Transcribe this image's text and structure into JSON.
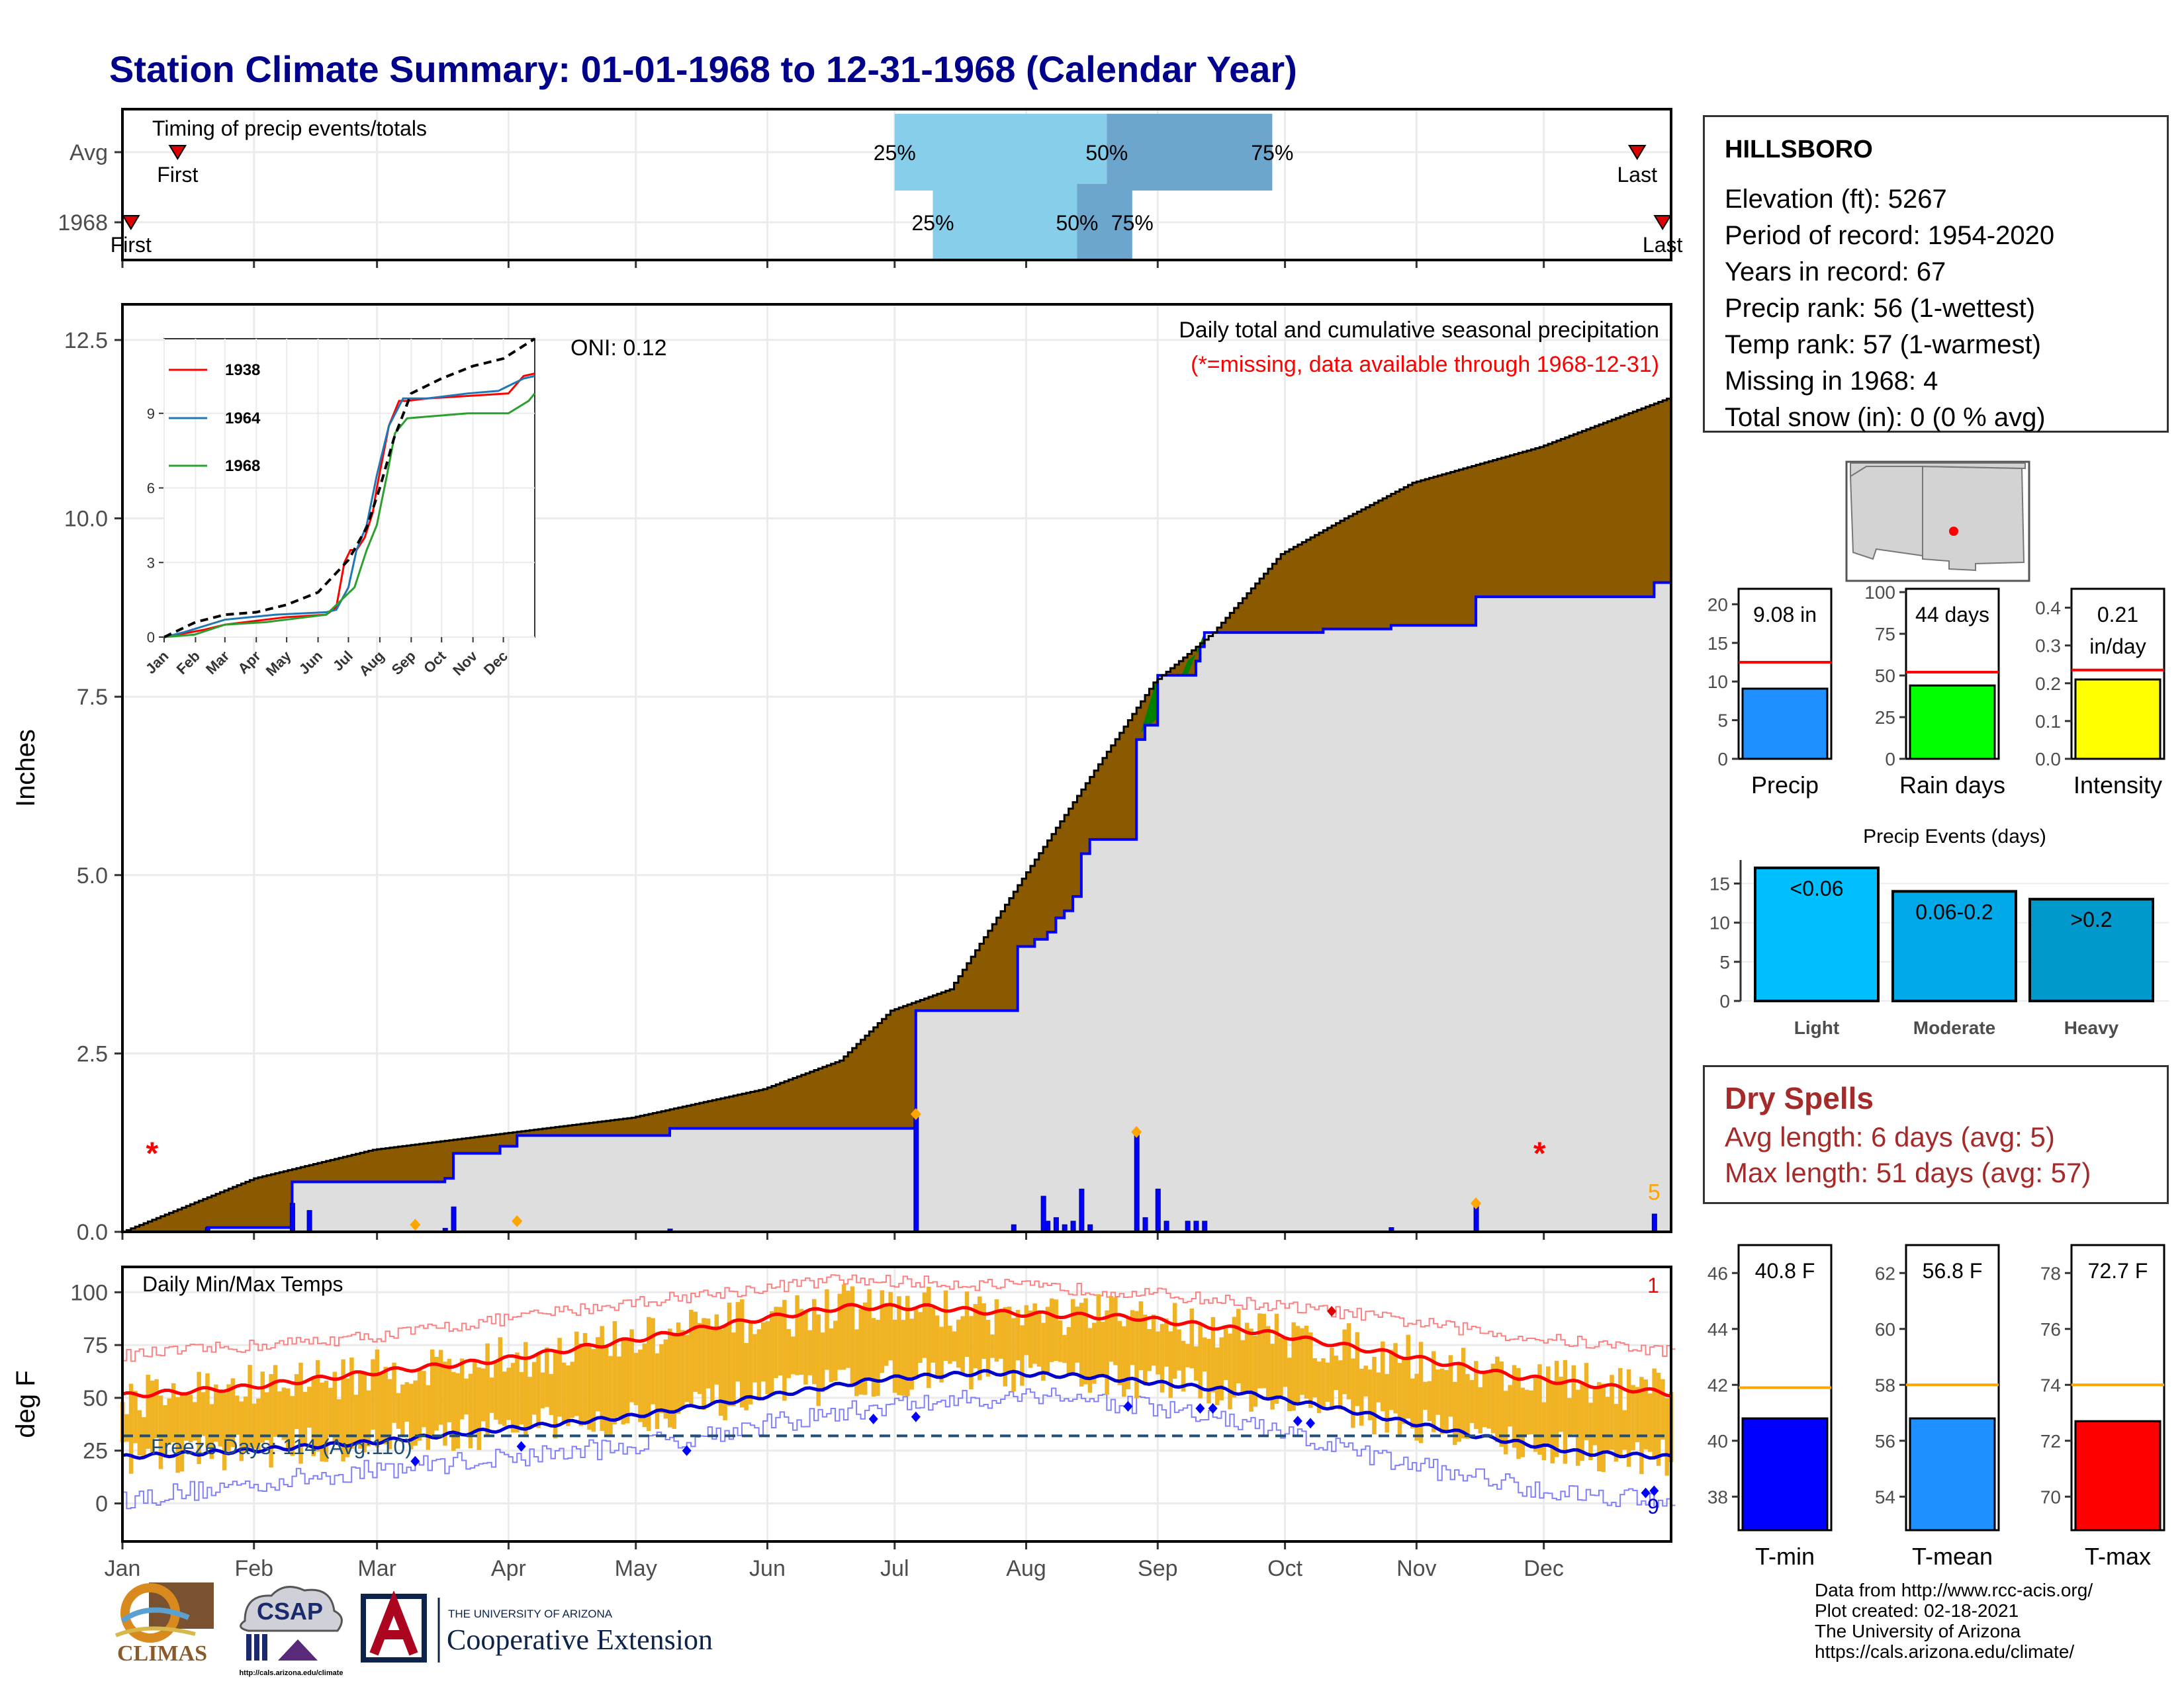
{
  "title": "Station Climate Summary: 01-01-1968 to 12-31-1968 (Calendar Year)",
  "station": {
    "name": "HILLSBORO",
    "lines": [
      "Elevation (ft): 5267",
      "Period of record: 1954-2020",
      "Years in record: 67",
      "Precip rank: 56 (1-wettest)",
      "Temp rank: 57 (1-warmest)",
      "Missing in 1968: 4",
      "Total snow (in): 0 (0 % avg)"
    ]
  },
  "dry_spells": {
    "heading": "Dry Spells",
    "avg_length": "Avg length: 6 days (avg: 5)",
    "max_length": "Max length: 51 days (avg: 57)"
  },
  "credits": [
    "Data from http://www.rcc-acis.org/",
    "Plot created: 02-18-2021",
    "The University of Arizona",
    "https://cals.arizona.edu/climate/"
  ],
  "logos": {
    "climas": "CLIMAS",
    "csap": "CSAP",
    "csap_url": "http://cals.arizona.edu/climate",
    "ua_small": "THE UNIVERSITY OF ARIZONA",
    "ua_big": "Cooperative Extension"
  },
  "colors": {
    "title": "#00008b",
    "cum_current": "#0000ff",
    "cum_fill_deficit": "#8b5a00",
    "cum_fill_surplus": "#008000",
    "cum_area": "#dedede",
    "temp_bars": "#f0b323",
    "tmax_avg": "#ff0000",
    "tmin_avg": "#0000cd",
    "freeze_line": "#1f4e79",
    "pct_light": "#87ceeb",
    "pct_dark": "#6ca6cd"
  },
  "chart_data": [
    {
      "id": "timing",
      "type": "bar",
      "title": "Timing of precip events/totals",
      "rows": [
        {
          "label": "Avg",
          "first_date": "1968-01-14",
          "p25": "1968-07-01",
          "p50": "1968-08-20",
          "p75": "1968-09-28",
          "last_date": "1968-12-23",
          "first_label": "First",
          "last_label": "Last",
          "p25_label": "25%",
          "p50_label": "50%",
          "p75_label": "75%"
        },
        {
          "label": "1968",
          "first_date": "1968-01-03",
          "p25": "1968-07-10",
          "p50": "1968-08-13",
          "p75": "1968-08-26",
          "last_date": "1968-12-29",
          "first_label": "First",
          "last_label": "Last",
          "p25_label": "25%",
          "p50_label": "50%",
          "p75_label": "75%"
        }
      ]
    },
    {
      "id": "precip",
      "type": "area",
      "title": "Daily total and cumulative seasonal precipitation",
      "subtitle": "(*=missing, data available through 1968-12-31)",
      "ylabel": "Inches",
      "ylim": [
        0,
        13
      ],
      "yticks": [
        "0.0",
        "2.5",
        "5.0",
        "7.5",
        "10.0",
        "12.5"
      ],
      "months": [
        "Jan",
        "Feb",
        "Mar",
        "Apr",
        "May",
        "Jun",
        "Jul",
        "Aug",
        "Sep",
        "Oct",
        "Nov",
        "Dec"
      ],
      "oni": "ONI: 0.12",
      "avg_cumulative_monthly": [
        [
          1,
          0
        ],
        [
          32,
          0.75
        ],
        [
          60,
          1.15
        ],
        [
          91,
          1.38
        ],
        [
          121,
          1.6
        ],
        [
          152,
          2.0
        ],
        [
          170,
          2.4
        ],
        [
          182,
          3.1
        ],
        [
          196,
          3.4
        ],
        [
          213,
          4.95
        ],
        [
          227,
          6.2
        ],
        [
          244,
          7.7
        ],
        [
          258,
          8.4
        ],
        [
          274,
          9.5
        ],
        [
          289,
          10.0
        ],
        [
          305,
          10.5
        ],
        [
          335,
          11.0
        ],
        [
          366,
          11.7
        ]
      ],
      "cumulative_1968_steps": [
        [
          1,
          0
        ],
        [
          21,
          0.06
        ],
        [
          41,
          0.3
        ],
        [
          41,
          0.7
        ],
        [
          59,
          0.7
        ],
        [
          77,
          0.75
        ],
        [
          79,
          1.1
        ],
        [
          90,
          1.2
        ],
        [
          94,
          1.35
        ],
        [
          130,
          1.45
        ],
        [
          188,
          1.45
        ],
        [
          188,
          3.1
        ],
        [
          211,
          3.1
        ],
        [
          212,
          4.0
        ],
        [
          216,
          4.1
        ],
        [
          219,
          4.1
        ],
        [
          219,
          4.2
        ],
        [
          221,
          4.4
        ],
        [
          223,
          4.5
        ],
        [
          225,
          4.7
        ],
        [
          227,
          5.3
        ],
        [
          229,
          5.5
        ],
        [
          240,
          5.5
        ],
        [
          240,
          6.9
        ],
        [
          242,
          7.1
        ],
        [
          245,
          7.4
        ],
        [
          245,
          7.8
        ],
        [
          252,
          7.8
        ],
        [
          254,
          8.0
        ],
        [
          255,
          8.2
        ],
        [
          256,
          8.3
        ],
        [
          256,
          8.4
        ],
        [
          262,
          8.4
        ],
        [
          284,
          8.45
        ],
        [
          300,
          8.5
        ],
        [
          320,
          8.5
        ],
        [
          320,
          8.9
        ],
        [
          360,
          8.9
        ],
        [
          362,
          9.1
        ],
        [
          366,
          9.1
        ]
      ],
      "daily_bars": [
        [
          21,
          0.06
        ],
        [
          24,
          0.01
        ],
        [
          41,
          0.4
        ],
        [
          45,
          0.3
        ],
        [
          77,
          0.05
        ],
        [
          79,
          0.35
        ],
        [
          130,
          0.04
        ],
        [
          188,
          1.65
        ],
        [
          211,
          0.1
        ],
        [
          218,
          0.5
        ],
        [
          219,
          0.15
        ],
        [
          221,
          0.2
        ],
        [
          223,
          0.1
        ],
        [
          225,
          0.15
        ],
        [
          227,
          0.6
        ],
        [
          229,
          0.1
        ],
        [
          240,
          1.4
        ],
        [
          242,
          0.2
        ],
        [
          245,
          0.6
        ],
        [
          247,
          0.15
        ],
        [
          252,
          0.15
        ],
        [
          254,
          0.15
        ],
        [
          256,
          0.15
        ],
        [
          300,
          0.06
        ],
        [
          320,
          0.4
        ],
        [
          362,
          0.25
        ]
      ],
      "missing_days": [
        8,
        335
      ],
      "record_marks": [
        [
          70,
          0.1
        ],
        [
          94,
          0.15
        ],
        [
          188,
          1.65
        ],
        [
          240,
          1.4
        ],
        [
          320,
          0.4
        ]
      ],
      "record_count": "5",
      "inset": {
        "ylim": [
          0,
          12
        ],
        "yticks": [
          "0",
          "3",
          "6",
          "9"
        ],
        "months": [
          "Jan",
          "Feb",
          "Mar",
          "Apr",
          "May",
          "Jun",
          "Jul",
          "Aug",
          "Sep",
          "Oct",
          "Nov",
          "Dec"
        ],
        "series": [
          {
            "name": "1938",
            "color": "#ff0000",
            "points": [
              [
                0,
                0
              ],
              [
                40,
                0.3
              ],
              [
                60,
                0.5
              ],
              [
                120,
                0.8
              ],
              [
                160,
                0.9
              ],
              [
                170,
                1.2
              ],
              [
                178,
                3.0
              ],
              [
                184,
                3.5
              ],
              [
                190,
                3.5
              ],
              [
                198,
                4.0
              ],
              [
                206,
                5.0
              ],
              [
                210,
                6.0
              ],
              [
                222,
                8.5
              ],
              [
                232,
                9.5
              ],
              [
                240,
                9.5
              ],
              [
                260,
                9.6
              ],
              [
                300,
                9.7
              ],
              [
                340,
                9.8
              ],
              [
                355,
                10.5
              ],
              [
                366,
                10.6
              ]
            ]
          },
          {
            "name": "1964",
            "color": "#1f77b4",
            "points": [
              [
                0,
                0
              ],
              [
                20,
                0.2
              ],
              [
                60,
                0.7
              ],
              [
                110,
                0.9
              ],
              [
                160,
                1.0
              ],
              [
                170,
                1.1
              ],
              [
                182,
                2.0
              ],
              [
                190,
                3.5
              ],
              [
                200,
                4.5
              ],
              [
                210,
                6.5
              ],
              [
                222,
                8.5
              ],
              [
                236,
                9.6
              ],
              [
                260,
                9.6
              ],
              [
                300,
                9.8
              ],
              [
                330,
                9.9
              ],
              [
                355,
                10.4
              ],
              [
                366,
                10.5
              ]
            ]
          },
          {
            "name": "1968",
            "color": "#2ca02c",
            "points": [
              [
                0,
                0
              ],
              [
                30,
                0.1
              ],
              [
                60,
                0.5
              ],
              [
                100,
                0.6
              ],
              [
                140,
                0.8
              ],
              [
                160,
                0.9
              ],
              [
                188,
                2.0
              ],
              [
                200,
                3.5
              ],
              [
                210,
                4.5
              ],
              [
                220,
                6.5
              ],
              [
                228,
                8.2
              ],
              [
                240,
                8.8
              ],
              [
                300,
                9.0
              ],
              [
                340,
                9.0
              ],
              [
                360,
                9.5
              ],
              [
                366,
                9.8
              ]
            ]
          },
          {
            "name": "",
            "color": "#000000",
            "dashed": true,
            "points": [
              [
                0,
                0
              ],
              [
                31,
                0.6
              ],
              [
                60,
                0.9
              ],
              [
                91,
                1.0
              ],
              [
                121,
                1.3
              ],
              [
                152,
                1.8
              ],
              [
                182,
                3.1
              ],
              [
                200,
                4.4
              ],
              [
                213,
                6.0
              ],
              [
                227,
                8.0
              ],
              [
                244,
                9.8
              ],
              [
                274,
                10.4
              ],
              [
                305,
                10.9
              ],
              [
                335,
                11.2
              ],
              [
                366,
                12.0
              ]
            ]
          }
        ]
      }
    },
    {
      "id": "temps",
      "type": "line",
      "title": "Daily Min/Max Temps",
      "ylabel": "deg F",
      "ylim": [
        -18,
        112
      ],
      "yticks": [
        "0",
        "25",
        "50",
        "75",
        "100"
      ],
      "months": [
        "Jan",
        "Feb",
        "Mar",
        "Apr",
        "May",
        "Jun",
        "Jul",
        "Aug",
        "Sep",
        "Oct",
        "Nov",
        "Dec"
      ],
      "freeze_line": 32,
      "freeze_text": "Freeze Days: 114 (Avg:110)",
      "record_high_count": "1",
      "record_low_count": "9",
      "tmax_avg_keys": [
        [
          1,
          51
        ],
        [
          30,
          55
        ],
        [
          60,
          62
        ],
        [
          90,
          68
        ],
        [
          120,
          77
        ],
        [
          150,
          87
        ],
        [
          171,
          93
        ],
        [
          190,
          93
        ],
        [
          210,
          90
        ],
        [
          240,
          88
        ],
        [
          270,
          81
        ],
        [
          300,
          71
        ],
        [
          330,
          60
        ],
        [
          366,
          52
        ]
      ],
      "tmin_avg_keys": [
        [
          1,
          22
        ],
        [
          30,
          25
        ],
        [
          60,
          29
        ],
        [
          90,
          35
        ],
        [
          120,
          41
        ],
        [
          150,
          50
        ],
        [
          180,
          59
        ],
        [
          205,
          62
        ],
        [
          230,
          60
        ],
        [
          260,
          54
        ],
        [
          290,
          44
        ],
        [
          320,
          32
        ],
        [
          345,
          24
        ],
        [
          366,
          22
        ]
      ],
      "record_high_keys": [
        [
          1,
          70
        ],
        [
          60,
          79
        ],
        [
          120,
          95
        ],
        [
          170,
          106
        ],
        [
          200,
          104
        ],
        [
          240,
          100
        ],
        [
          290,
          90
        ],
        [
          330,
          79
        ],
        [
          366,
          72
        ]
      ],
      "record_low_keys": [
        [
          1,
          2
        ],
        [
          60,
          16
        ],
        [
          120,
          27
        ],
        [
          180,
          46
        ],
        [
          220,
          52
        ],
        [
          260,
          40
        ],
        [
          300,
          20
        ],
        [
          340,
          5
        ],
        [
          366,
          2
        ]
      ],
      "record_high_marks": [
        [
          286,
          91
        ]
      ],
      "record_low_marks": [
        [
          70,
          20
        ],
        [
          95,
          27
        ],
        [
          134,
          25
        ],
        [
          178,
          40
        ],
        [
          188,
          41
        ],
        [
          238,
          46
        ],
        [
          255,
          45
        ],
        [
          258,
          45
        ],
        [
          278,
          39
        ],
        [
          281,
          38
        ],
        [
          360,
          5
        ],
        [
          362,
          6
        ]
      ]
    },
    {
      "id": "summary_precip",
      "type": "bar",
      "bars": [
        {
          "label": "Precip",
          "value": 9.08,
          "avg": 12.5,
          "text": "9.08 in",
          "ymax": 22,
          "ticks": [
            "0",
            "5",
            "10",
            "15",
            "20"
          ],
          "color": "#1e90ff"
        },
        {
          "label": "Rain days",
          "value": 44,
          "avg": 52,
          "text": "44 days",
          "ymax": 102,
          "ticks": [
            "0",
            "25",
            "50",
            "75",
            "100"
          ],
          "color": "#00ff00"
        },
        {
          "label": "Intensity",
          "value": 0.21,
          "avg": 0.235,
          "text": "0.21 in/day",
          "ymax": 0.45,
          "ticks": [
            "0.0",
            "0.1",
            "0.2",
            "0.3",
            "0.4"
          ],
          "color": "#ffff00"
        }
      ]
    },
    {
      "id": "precip_events",
      "type": "bar",
      "title": "Precip Events (days)",
      "ylim": [
        0,
        17
      ],
      "yticks": [
        "0",
        "5",
        "10",
        "15"
      ],
      "bars": [
        {
          "label": "Light",
          "value": 17,
          "text": "<0.06",
          "color": "#00bfff"
        },
        {
          "label": "Moderate",
          "value": 14,
          "text": "0.06-0.2",
          "color": "#00a9e8"
        },
        {
          "label": "Heavy",
          "value": 13,
          "text": ">0.2",
          "color": "#0099cc"
        }
      ]
    },
    {
      "id": "summary_temps",
      "type": "bar",
      "bars": [
        {
          "label": "T-min",
          "value": 40.8,
          "avg": 41.9,
          "text": "40.8 F",
          "ymin": 36.8,
          "ymax": 47,
          "ticks": [
            "38",
            "40",
            "42",
            "44",
            "46"
          ],
          "color": "#0000ff"
        },
        {
          "label": "T-mean",
          "value": 56.8,
          "avg": 58.0,
          "text": "56.8 F",
          "ymin": 52.8,
          "ymax": 63,
          "ticks": [
            "54",
            "56",
            "58",
            "60",
            "62"
          ],
          "color": "#1e90ff"
        },
        {
          "label": "T-max",
          "value": 72.7,
          "avg": 74.0,
          "text": "72.7 F",
          "ymin": 68.8,
          "ymax": 79,
          "ticks": [
            "70",
            "72",
            "74",
            "76",
            "78"
          ],
          "color": "#ff0000"
        }
      ]
    }
  ]
}
